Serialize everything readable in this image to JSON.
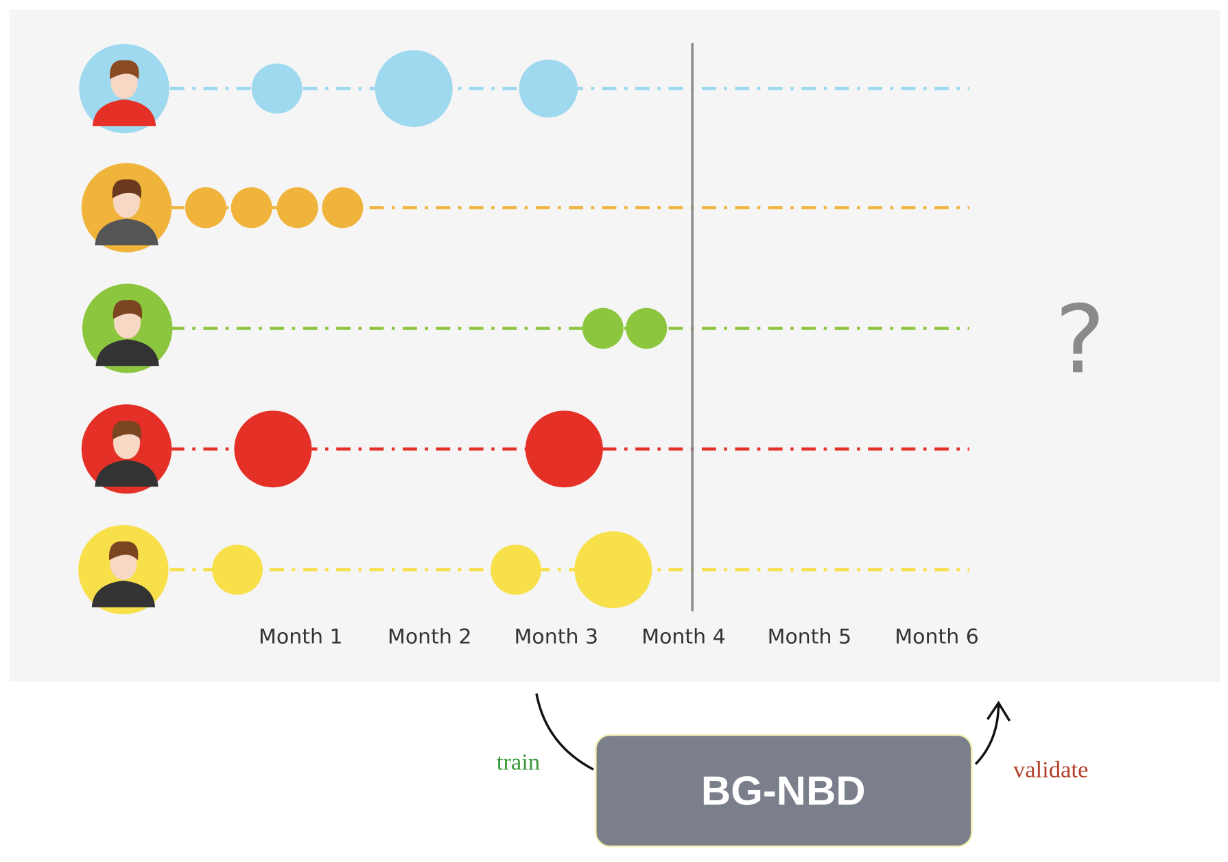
{
  "timeline": {
    "months": [
      "Month 1",
      "Month 2",
      "Month 3",
      "Month 4",
      "Month 5",
      "Month 6"
    ],
    "unknown": "?"
  },
  "model": {
    "label": "BG-NBD",
    "train": "train",
    "validate": "validate"
  }
}
